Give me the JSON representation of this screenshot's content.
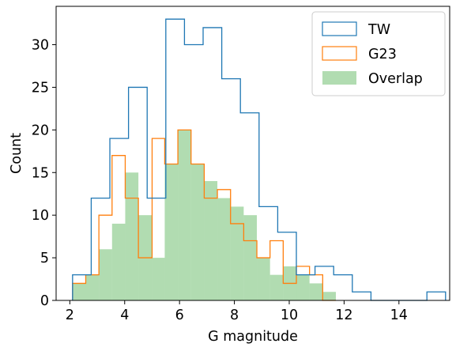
{
  "chart_data": {
    "type": "histogram",
    "xlabel": "G magnitude",
    "ylabel": "Count",
    "xlim": [
      1.5,
      15.85
    ],
    "ylim": [
      0,
      34.5
    ],
    "xticks": [
      2,
      4,
      6,
      8,
      10,
      12,
      14
    ],
    "yticks": [
      0,
      5,
      10,
      15,
      20,
      25,
      30
    ],
    "grid": false,
    "legend_position": "top-right",
    "series": [
      {
        "name": "TW",
        "style": "step",
        "color": "#1f77b4",
        "edges": [
          2.1,
          2.78,
          3.46,
          4.14,
          4.82,
          5.5,
          6.18,
          6.86,
          7.54,
          8.22,
          8.9,
          9.58,
          10.26,
          10.94,
          11.62,
          12.3,
          12.98,
          13.66,
          14.34,
          15.02,
          15.7
        ],
        "counts": [
          3,
          12,
          19,
          25,
          12,
          33,
          30,
          32,
          26,
          22,
          11,
          8,
          3,
          4,
          3,
          1,
          0,
          0,
          0,
          1
        ]
      },
      {
        "name": "G23",
        "style": "step",
        "color": "#ff7f0e",
        "edges": [
          2.1,
          2.58,
          3.06,
          3.54,
          4.02,
          4.5,
          5.0,
          5.46,
          5.94,
          6.42,
          6.9,
          7.38,
          7.86,
          8.34,
          8.82,
          9.3,
          9.78,
          10.26,
          10.74,
          11.22,
          11.7
        ],
        "counts": [
          2,
          3,
          10,
          17,
          12,
          5,
          19,
          16,
          20,
          16,
          12,
          13,
          9,
          7,
          5,
          7,
          2,
          4,
          3,
          0
        ]
      },
      {
        "name": "Overlap",
        "style": "filled",
        "color": "#2ca02c",
        "opacity": 0.37,
        "edges": [
          2.1,
          2.58,
          3.06,
          3.54,
          4.02,
          4.5,
          5.0,
          5.46,
          5.94,
          6.42,
          6.9,
          7.38,
          7.86,
          8.34,
          8.82,
          9.3,
          9.78,
          10.26,
          10.74,
          11.22,
          11.7
        ],
        "counts": [
          2,
          3,
          6,
          9,
          15,
          10,
          5,
          16,
          20,
          16,
          14,
          12,
          11,
          10,
          5,
          3,
          4,
          3,
          2,
          1
        ]
      }
    ]
  }
}
